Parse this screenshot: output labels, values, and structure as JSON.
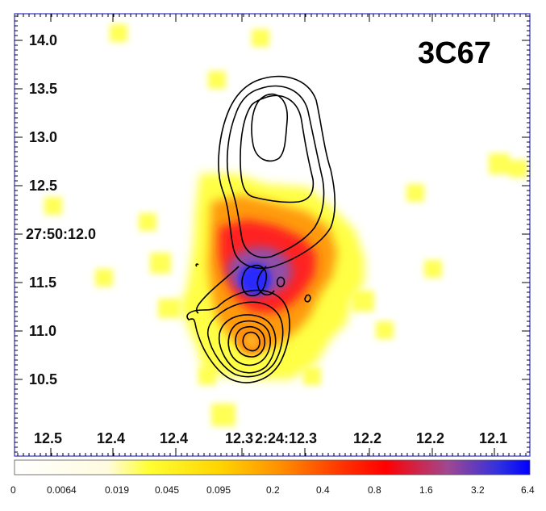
{
  "title": "3C67",
  "dec_ticks": [
    "14.0",
    "13.5",
    "13.0",
    "12.5",
    "27:50:12.0",
    "11.5",
    "11.0",
    "10.5"
  ],
  "ra_ticks": [
    "12.5",
    "12.4",
    "12.4",
    "12.3",
    "2:24:12.3",
    "12.2",
    "12.2",
    "12.1"
  ],
  "colorbar": {
    "labels": [
      "0",
      "0.0064",
      "0.019",
      "0.045",
      "0.095",
      "0.2",
      "0.4",
      "0.8",
      "1.6",
      "3.2",
      "6.4"
    ],
    "colors": [
      "#ffffff",
      "#fff7cc",
      "#ffff00",
      "#ffcc00",
      "#ff8000",
      "#ff0000",
      "#b04080",
      "#0000ff"
    ]
  },
  "colors": {
    "frame": "#3333cc",
    "yellow": "#ffff33",
    "orange": "#ff9900",
    "red": "#ff1a1a",
    "purple": "#8c4fa8",
    "blue": "#2828ff"
  }
}
